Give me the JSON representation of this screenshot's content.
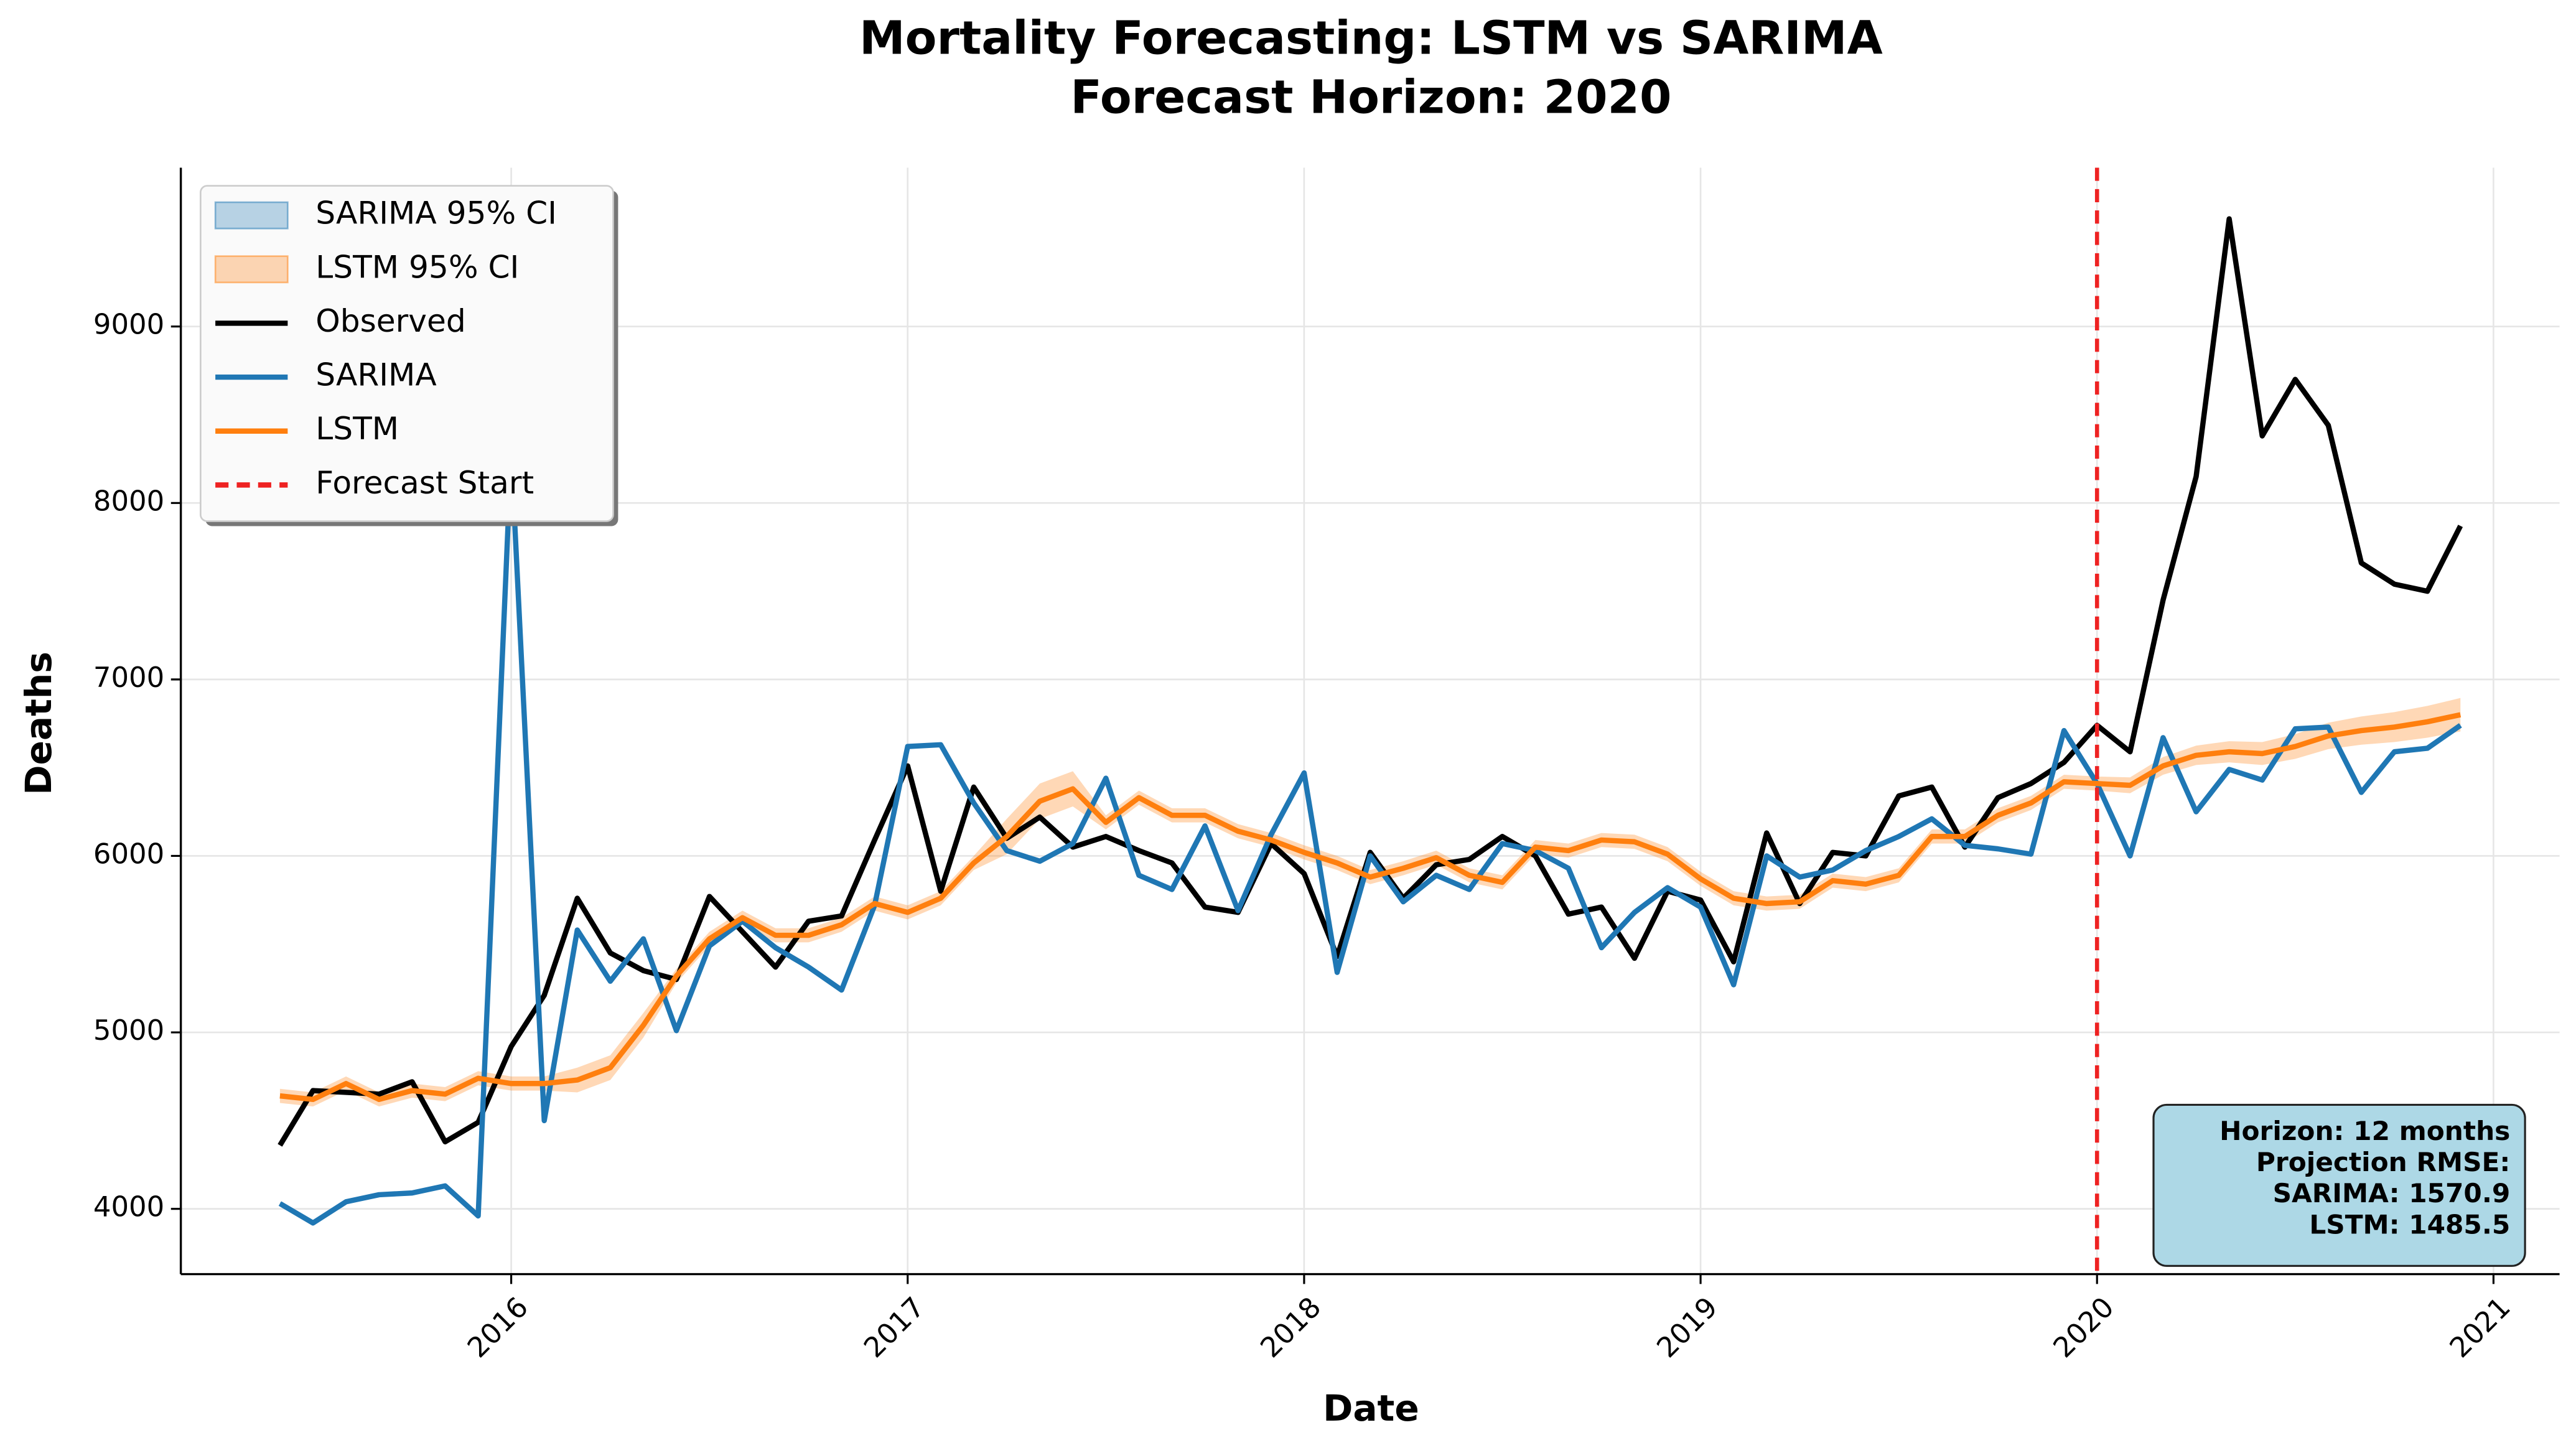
{
  "chart_data": {
    "type": "line",
    "title": "Mortality Forecasting: LSTM vs SARIMA",
    "subtitle": "Forecast Horizon: 2020",
    "x_label": "Date",
    "y_label": "Deaths",
    "x": [
      "2015-06",
      "2015-07",
      "2015-08",
      "2015-09",
      "2015-10",
      "2015-11",
      "2015-12",
      "2016-01",
      "2016-02",
      "2016-03",
      "2016-04",
      "2016-05",
      "2016-06",
      "2016-07",
      "2016-08",
      "2016-09",
      "2016-10",
      "2016-11",
      "2016-12",
      "2017-01",
      "2017-02",
      "2017-03",
      "2017-04",
      "2017-05",
      "2017-06",
      "2017-07",
      "2017-08",
      "2017-09",
      "2017-10",
      "2017-11",
      "2017-12",
      "2018-01",
      "2018-02",
      "2018-03",
      "2018-04",
      "2018-05",
      "2018-06",
      "2018-07",
      "2018-08",
      "2018-09",
      "2018-10",
      "2018-11",
      "2018-12",
      "2019-01",
      "2019-02",
      "2019-03",
      "2019-04",
      "2019-05",
      "2019-06",
      "2019-07",
      "2019-08",
      "2019-09",
      "2019-10",
      "2019-11",
      "2019-12",
      "2020-01",
      "2020-02",
      "2020-03",
      "2020-04",
      "2020-05",
      "2020-06",
      "2020-07",
      "2020-08",
      "2020-09",
      "2020-10",
      "2020-11",
      "2020-12"
    ],
    "bands": [
      {
        "name": "SARIMA 95% CI",
        "color": "#1f77b4",
        "lower": [
          4020,
          3910,
          4030,
          4070,
          4080,
          4120,
          3950,
          8280,
          4490,
          5570,
          5280,
          5520,
          5000,
          5480,
          5620,
          5470,
          5360,
          5230,
          5710,
          6610,
          6620,
          6290,
          6020,
          5960,
          6060,
          6430,
          5880,
          5800,
          6160,
          5680,
          6110,
          6460,
          5330,
          5990,
          5730,
          5880,
          5800,
          6060,
          6020,
          5920,
          5470,
          5670,
          5810,
          5700,
          5260,
          5990,
          5870,
          5910,
          6020,
          6100,
          6200,
          6050,
          6030,
          6000,
          6700,
          6400,
          5990,
          6660,
          6240,
          6480,
          6420,
          6710,
          6720,
          6350,
          6580,
          6600,
          6730
        ],
        "upper": [
          4040,
          3930,
          4050,
          4090,
          4100,
          4140,
          3970,
          8300,
          4510,
          5590,
          5300,
          5540,
          5020,
          5500,
          5640,
          5490,
          5380,
          5250,
          5730,
          6630,
          6640,
          6310,
          6040,
          5980,
          6080,
          6450,
          5900,
          5820,
          6180,
          5700,
          6130,
          6480,
          5350,
          6010,
          5750,
          5900,
          5820,
          6080,
          6040,
          5940,
          5490,
          5690,
          5830,
          5720,
          5280,
          6010,
          5890,
          5930,
          6040,
          6120,
          6220,
          6070,
          6050,
          6020,
          6720,
          6420,
          6010,
          6680,
          6260,
          6500,
          6440,
          6730,
          6740,
          6370,
          6600,
          6620,
          6750
        ]
      },
      {
        "name": "LSTM 95% CI",
        "color": "#ff7f0e",
        "lower": [
          4600,
          4580,
          4670,
          4580,
          4630,
          4610,
          4700,
          4670,
          4670,
          4660,
          4730,
          4970,
          5280,
          5490,
          5610,
          5510,
          5510,
          5570,
          5690,
          5640,
          5720,
          5920,
          6010,
          6210,
          6280,
          6150,
          6290,
          6190,
          6190,
          6100,
          6050,
          5980,
          5920,
          5840,
          5890,
          5950,
          5850,
          5810,
          6010,
          5990,
          6050,
          6040,
          5970,
          5830,
          5720,
          5690,
          5700,
          5820,
          5800,
          5850,
          6070,
          6070,
          6190,
          6260,
          6380,
          6370,
          6355,
          6460,
          6515,
          6530,
          6515,
          6550,
          6605,
          6630,
          6645,
          6670,
          6705
        ],
        "upper": [
          4680,
          4660,
          4750,
          4660,
          4710,
          4690,
          4780,
          4750,
          4750,
          4800,
          4870,
          5110,
          5360,
          5570,
          5690,
          5590,
          5590,
          5650,
          5770,
          5720,
          5800,
          6000,
          6210,
          6410,
          6480,
          6230,
          6370,
          6270,
          6270,
          6180,
          6130,
          6060,
          6000,
          5920,
          5970,
          6030,
          5930,
          5890,
          6090,
          6070,
          6130,
          6120,
          6050,
          5910,
          5800,
          5770,
          5780,
          5900,
          5880,
          5930,
          6150,
          6150,
          6270,
          6340,
          6460,
          6450,
          6445,
          6560,
          6625,
          6650,
          6645,
          6690,
          6755,
          6790,
          6815,
          6850,
          6895
        ]
      }
    ],
    "series": [
      {
        "name": "Observed",
        "color": "#000000",
        "values": [
          4360,
          4670,
          4660,
          4650,
          4720,
          4380,
          4490,
          4920,
          5210,
          5760,
          5450,
          5350,
          5300,
          5770,
          5570,
          5370,
          5630,
          5660,
          6090,
          6510,
          5800,
          6390,
          6100,
          6220,
          6050,
          6110,
          6030,
          5960,
          5710,
          5680,
          6070,
          5900,
          5430,
          6020,
          5760,
          5950,
          5980,
          6110,
          6000,
          5670,
          5710,
          5420,
          5800,
          5750,
          5400,
          6130,
          5730,
          6020,
          6000,
          6340,
          6390,
          6050,
          6330,
          6410,
          6530,
          6740,
          6590,
          7450,
          8150,
          9610,
          8380,
          8700,
          8440,
          7660,
          7540,
          7500,
          7870
        ]
      },
      {
        "name": "SARIMA",
        "color": "#1f77b4",
        "values": [
          4030,
          3920,
          4040,
          4080,
          4090,
          4130,
          3960,
          8290,
          4500,
          5580,
          5290,
          5530,
          5010,
          5490,
          5630,
          5480,
          5370,
          5240,
          5720,
          6620,
          6630,
          6300,
          6030,
          5970,
          6070,
          6440,
          5890,
          5810,
          6170,
          5690,
          6120,
          6470,
          5340,
          6000,
          5740,
          5890,
          5810,
          6070,
          6030,
          5930,
          5480,
          5680,
          5820,
          5710,
          5270,
          6000,
          5880,
          5920,
          6030,
          6110,
          6210,
          6060,
          6040,
          6010,
          6710,
          6410,
          6000,
          6670,
          6250,
          6490,
          6430,
          6720,
          6730,
          6360,
          6590,
          6610,
          6740
        ]
      },
      {
        "name": "LSTM",
        "color": "#ff7f0e",
        "values": [
          4640,
          4620,
          4710,
          4620,
          4670,
          4650,
          4740,
          4710,
          4710,
          4730,
          4800,
          5040,
          5320,
          5530,
          5650,
          5550,
          5550,
          5610,
          5730,
          5680,
          5760,
          5960,
          6110,
          6310,
          6380,
          6190,
          6330,
          6230,
          6230,
          6140,
          6090,
          6020,
          5960,
          5880,
          5930,
          5990,
          5890,
          5850,
          6050,
          6030,
          6090,
          6080,
          6010,
          5870,
          5760,
          5730,
          5740,
          5860,
          5840,
          5890,
          6110,
          6110,
          6230,
          6300,
          6420,
          6410,
          6400,
          6510,
          6570,
          6590,
          6580,
          6620,
          6680,
          6710,
          6730,
          6760,
          6800
        ]
      }
    ],
    "vline": {
      "x": "2020-01",
      "name": "Forecast Start",
      "color": "#ee2222"
    },
    "annotation": [
      "Horizon: 12 months",
      "Projection RMSE:",
      "SARIMA: 1570.9",
      "LSTM: 1485.5"
    ],
    "xlim": [
      "2015-03",
      "2021-03"
    ],
    "xticks": [
      "2016",
      "2017",
      "2018",
      "2019",
      "2020",
      "2021"
    ],
    "ylim": [
      3630,
      9900
    ],
    "yticks": [
      4000,
      5000,
      6000,
      7000,
      8000,
      9000
    ],
    "grid": true,
    "legend": "upper left"
  }
}
